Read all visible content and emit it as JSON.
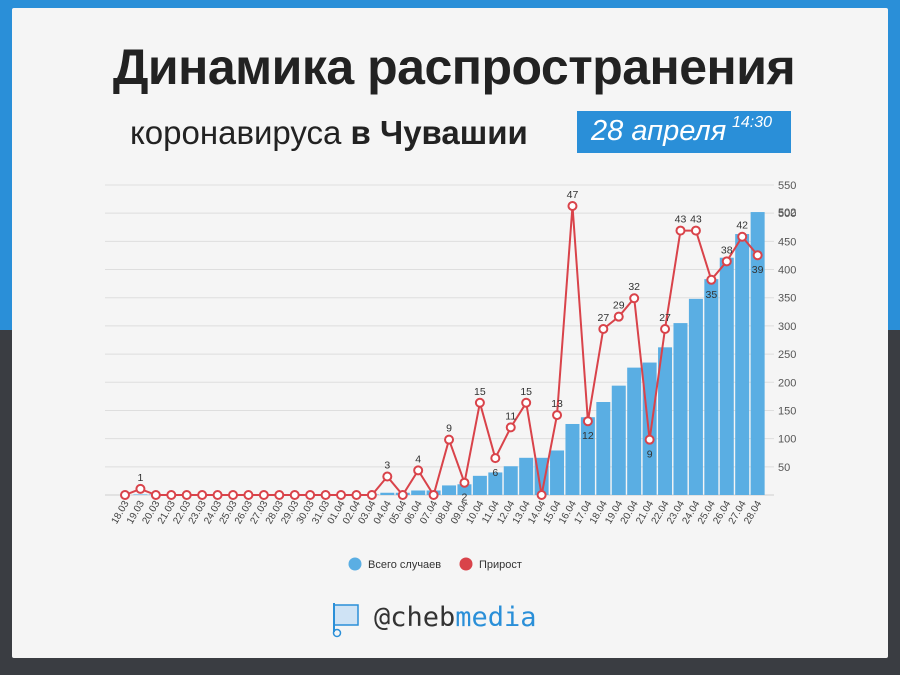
{
  "header": {
    "title": "Динамика распространения",
    "subtitle_plain": "коронавируса",
    "subtitle_bold": "в Чувашии",
    "date": "28 апреля",
    "time": "14:30"
  },
  "brand": {
    "handle_at": "@cheb",
    "handle_media": "media",
    "icon": "flag-icon"
  },
  "colors": {
    "bars": "#5aaee3",
    "line": "#d9434a",
    "accent": "#2a8fd8"
  },
  "chart_data": {
    "type": "bar",
    "categories": [
      "18.03",
      "19.03",
      "20.03",
      "21.03",
      "22.03",
      "23.03",
      "24.03",
      "25.03",
      "26.03",
      "27.03",
      "28.03",
      "29.03",
      "30.03",
      "31.03",
      "01.04",
      "02.04",
      "03.04",
      "04.04",
      "05.04",
      "06.04",
      "07.04",
      "08.04",
      "09.04",
      "10.04",
      "11.04",
      "12.04",
      "13.04",
      "14.04",
      "15.04",
      "16.04",
      "17.04",
      "18.04",
      "19.04",
      "20.04",
      "21.04",
      "22.04",
      "23.04",
      "24.04",
      "25.04",
      "26.04",
      "27.04",
      "28.04"
    ],
    "series": [
      {
        "name": "Всего случаев",
        "type": "bar",
        "values": [
          0,
          1,
          1,
          1,
          1,
          1,
          1,
          1,
          1,
          1,
          1,
          1,
          1,
          1,
          1,
          1,
          1,
          4,
          4,
          8,
          8,
          17,
          19,
          34,
          40,
          51,
          66,
          66,
          79,
          126,
          138,
          165,
          194,
          226,
          235,
          262,
          305,
          348,
          383,
          421,
          463,
          502
        ]
      },
      {
        "name": "Прирост",
        "type": "line",
        "values": [
          0,
          1,
          0,
          0,
          0,
          0,
          0,
          0,
          0,
          0,
          0,
          0,
          0,
          0,
          0,
          0,
          0,
          3,
          0,
          4,
          0,
          9,
          2,
          15,
          6,
          11,
          15,
          0,
          13,
          47,
          12,
          27,
          29,
          32,
          9,
          27,
          43,
          43,
          35,
          38,
          42,
          39
        ],
        "labels": [
          "",
          "1",
          "",
          "",
          "",
          "",
          "",
          "",
          "",
          "",
          "",
          "",
          "",
          "",
          "",
          "",
          "",
          "3",
          "",
          "4",
          "",
          "9",
          "2",
          "15",
          "6",
          "11",
          "15",
          "",
          "13",
          "47",
          "12",
          "27",
          "29",
          "32",
          "9",
          "27",
          "43",
          "43",
          "35",
          "38",
          "42",
          "39"
        ]
      }
    ],
    "y_ticks": [
      "50",
      "100",
      "150",
      "200",
      "250",
      "300",
      "350",
      "400",
      "450",
      "500",
      "550"
    ],
    "last_bar_label": "502",
    "ylim": [
      0,
      550
    ],
    "legend_position": "bottom",
    "grid": true
  }
}
